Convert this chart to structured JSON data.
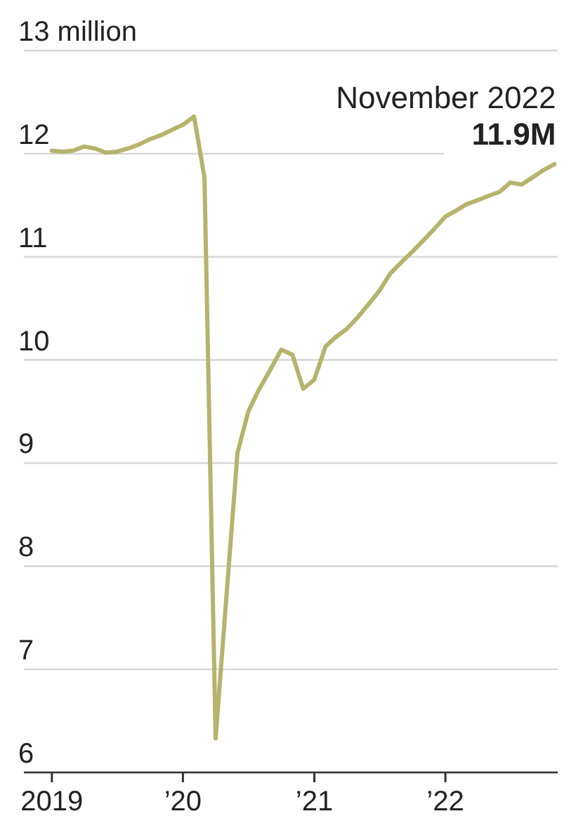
{
  "chart_data": {
    "type": "line",
    "x": [
      "2019-01",
      "2019-02",
      "2019-03",
      "2019-04",
      "2019-05",
      "2019-06",
      "2019-07",
      "2019-08",
      "2019-09",
      "2019-10",
      "2019-11",
      "2019-12",
      "2020-01",
      "2020-02",
      "2020-03",
      "2020-04",
      "2020-05",
      "2020-06",
      "2020-07",
      "2020-08",
      "2020-09",
      "2020-10",
      "2020-11",
      "2020-12",
      "2021-01",
      "2021-02",
      "2021-03",
      "2021-04",
      "2021-05",
      "2021-06",
      "2021-07",
      "2021-08",
      "2021-09",
      "2021-10",
      "2021-11",
      "2021-12",
      "2022-01",
      "2022-02",
      "2022-03",
      "2022-04",
      "2022-05",
      "2022-06",
      "2022-07",
      "2022-08",
      "2022-09",
      "2022-10",
      "2022-11"
    ],
    "series": [
      {
        "color": "#b5b36c",
        "values": [
          12.03,
          12.02,
          12.03,
          12.07,
          12.05,
          12.01,
          12.02,
          12.05,
          12.09,
          12.14,
          12.18,
          12.23,
          12.28,
          12.36,
          11.77,
          6.33,
          7.7,
          9.1,
          9.5,
          9.72,
          9.91,
          10.1,
          10.05,
          9.72,
          9.81,
          10.13,
          10.22,
          10.3,
          10.41,
          10.54,
          10.67,
          10.84,
          10.95,
          11.05,
          11.16,
          11.27,
          11.39,
          11.45,
          11.51,
          11.55,
          11.59,
          11.63,
          11.72,
          11.7,
          11.77,
          11.84,
          11.9
        ]
      }
    ],
    "xlim": [
      "2018-10-15",
      "2022-11-10"
    ],
    "xticks": [
      {
        "value": "2019-01-01",
        "label": "2019"
      },
      {
        "value": "2020-01-01",
        "label": "’20"
      },
      {
        "value": "2021-01-01",
        "label": "’21"
      },
      {
        "value": "2022-01-01",
        "label": "’22"
      }
    ],
    "ylim": [
      6,
      13
    ],
    "yticks": [
      6,
      7,
      8,
      9,
      10,
      11,
      12,
      {
        "value": 13,
        "label": "13 million"
      }
    ],
    "grid": "y",
    "annotations": [
      {
        "text": "November 2022",
        "x": "2022-11",
        "y": 11.9
      },
      {
        "text": "11.9M",
        "x": "2022-11",
        "y": 11.9
      }
    ]
  }
}
